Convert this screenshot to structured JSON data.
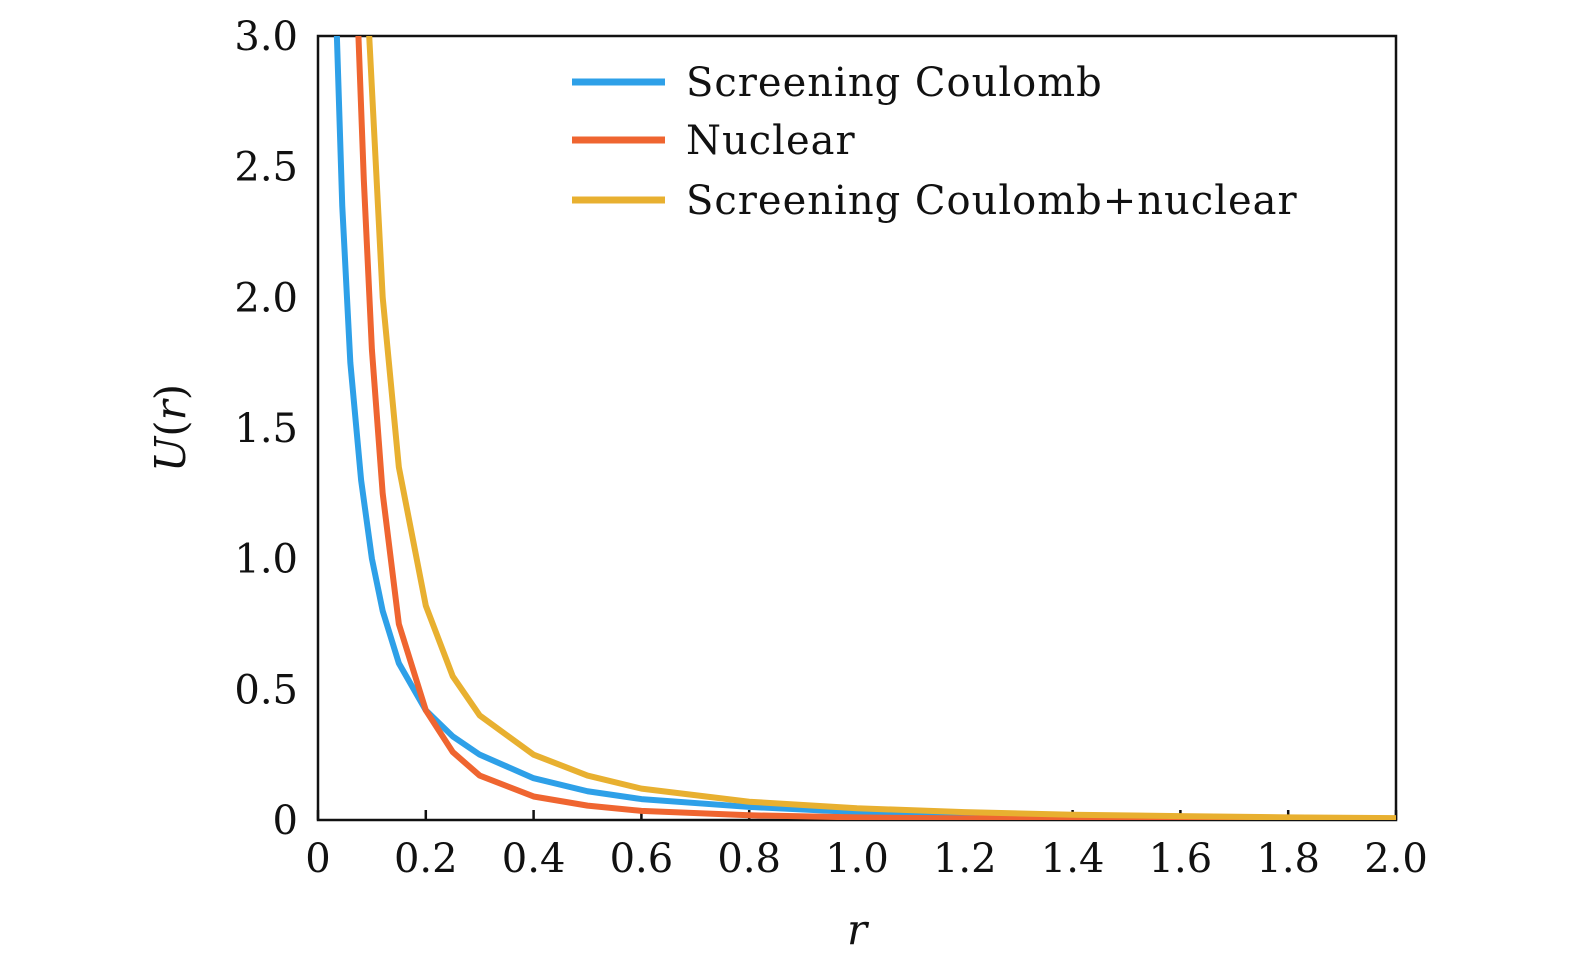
{
  "chart_data": {
    "type": "line",
    "title": "",
    "xlabel": "r",
    "ylabel": "U(r)",
    "ylabel_main": "U",
    "ylabel_paren_open": "(",
    "ylabel_var": "r",
    "ylabel_paren_close": ")",
    "xlim": [
      0,
      2.0
    ],
    "ylim": [
      0,
      3.0
    ],
    "grid": false,
    "legend_position": "top-right",
    "x_ticks": [
      0,
      0.2,
      0.4,
      0.6,
      0.8,
      1.0,
      1.2,
      1.4,
      1.6,
      1.8,
      2.0
    ],
    "x_tick_labels": [
      "0",
      "0.2",
      "0.4",
      "0.6",
      "0.8",
      "1.0",
      "1.2",
      "1.4",
      "1.6",
      "1.8",
      "2.0"
    ],
    "y_ticks": [
      0,
      0.5,
      1.0,
      1.5,
      2.0,
      2.5,
      3.0
    ],
    "y_tick_labels": [
      "0",
      "0.5",
      "1.0",
      "1.5",
      "2.0",
      "2.5",
      "3.0"
    ],
    "series": [
      {
        "name": "Screening Coulomb",
        "color": "#2ea0e8",
        "x": [
          0.035,
          0.045,
          0.06,
          0.08,
          0.1,
          0.12,
          0.15,
          0.2,
          0.25,
          0.3,
          0.4,
          0.5,
          0.6,
          0.8,
          1.0,
          1.2,
          1.4,
          1.6,
          1.8,
          2.0
        ],
        "y": [
          3.0,
          2.35,
          1.75,
          1.3,
          1.0,
          0.8,
          0.6,
          0.42,
          0.32,
          0.25,
          0.16,
          0.11,
          0.08,
          0.05,
          0.03,
          0.022,
          0.015,
          0.01,
          0.007,
          0.005
        ]
      },
      {
        "name": "Nuclear",
        "color": "#ef6530",
        "x": [
          0.075,
          0.085,
          0.1,
          0.12,
          0.15,
          0.2,
          0.25,
          0.3,
          0.4,
          0.5,
          0.6,
          0.8,
          1.0,
          1.2,
          1.4,
          1.6,
          1.8,
          2.0
        ],
        "y": [
          3.0,
          2.45,
          1.8,
          1.25,
          0.75,
          0.42,
          0.26,
          0.17,
          0.09,
          0.055,
          0.035,
          0.018,
          0.01,
          0.006,
          0.004,
          0.003,
          0.002,
          0.001
        ]
      },
      {
        "name": "Screening Coulomb+nuclear",
        "color": "#e8b030",
        "x": [
          0.095,
          0.105,
          0.12,
          0.15,
          0.2,
          0.25,
          0.3,
          0.4,
          0.5,
          0.6,
          0.8,
          1.0,
          1.2,
          1.4,
          1.6,
          1.8,
          2.0
        ],
        "y": [
          3.0,
          2.6,
          2.0,
          1.35,
          0.82,
          0.55,
          0.4,
          0.25,
          0.17,
          0.12,
          0.07,
          0.045,
          0.03,
          0.02,
          0.015,
          0.01,
          0.007
        ]
      }
    ]
  }
}
